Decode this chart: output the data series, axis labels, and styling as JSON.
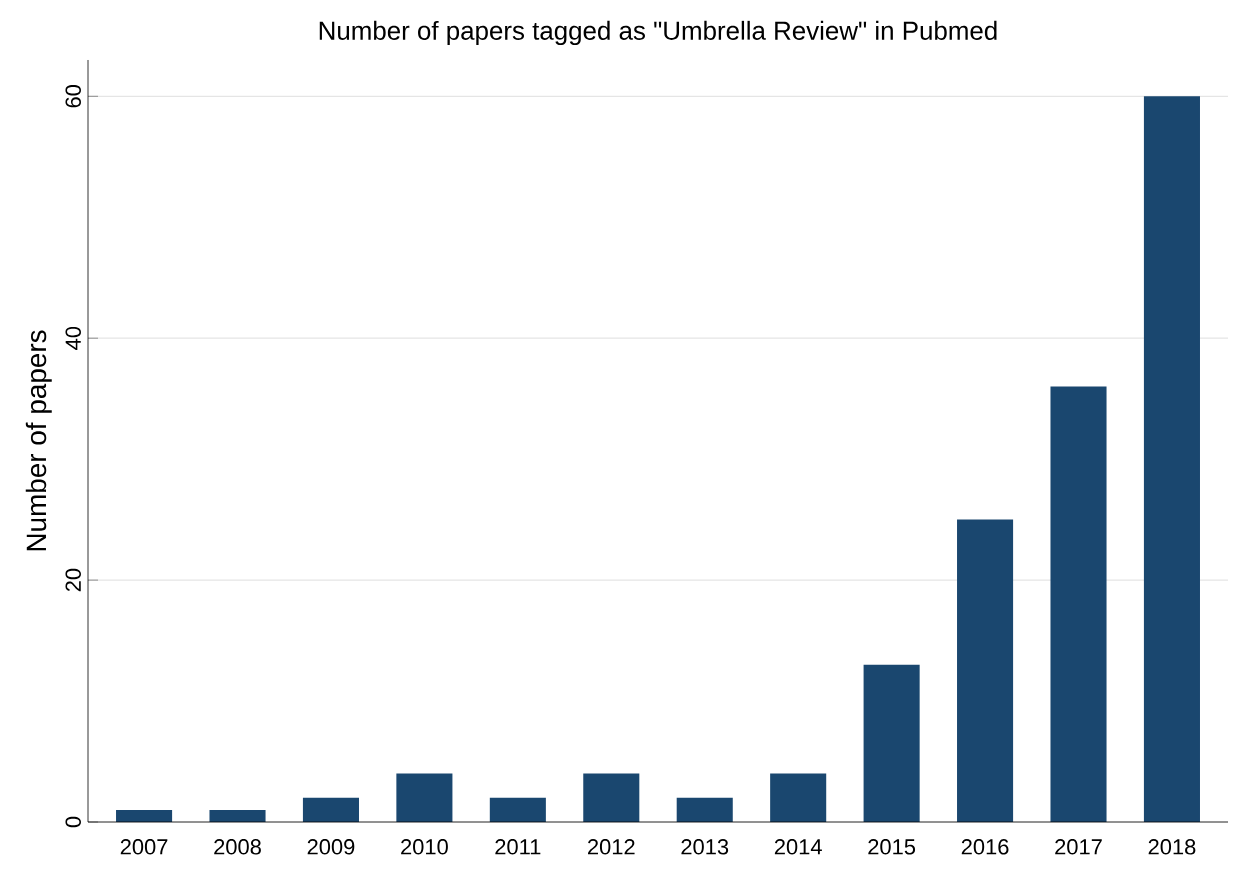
{
  "chart_data": {
    "type": "bar",
    "title": "Number of papers tagged as \"Umbrella Review\" in Pubmed",
    "ylabel": "Number of papers",
    "categories": [
      "2007",
      "2008",
      "2009",
      "2010",
      "2011",
      "2012",
      "2013",
      "2014",
      "2015",
      "2016",
      "2017",
      "2018"
    ],
    "values": [
      1,
      1,
      2,
      4,
      2,
      4,
      2,
      4,
      13,
      25,
      36,
      60
    ],
    "color": "#1a476f",
    "ylim": [
      0,
      63
    ],
    "yticks": [
      0,
      20,
      40,
      60
    ],
    "grid": "y"
  }
}
